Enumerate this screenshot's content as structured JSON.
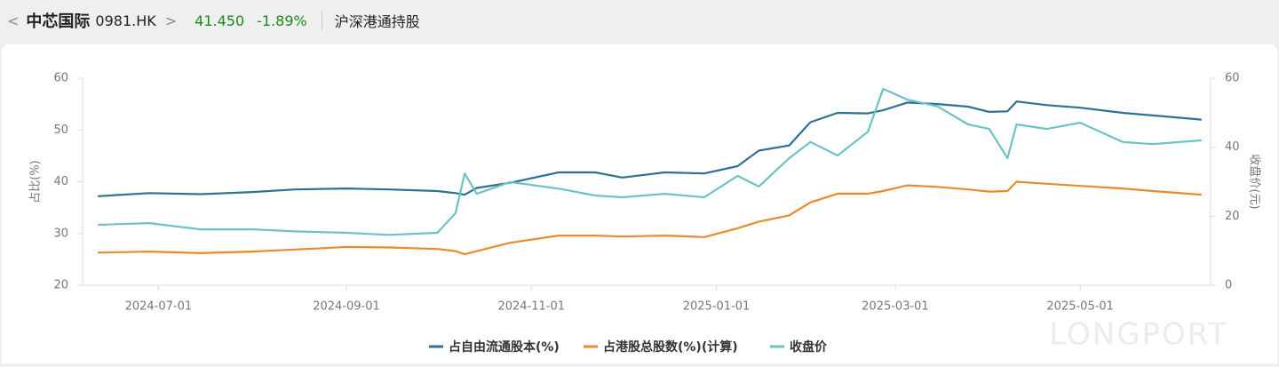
{
  "header": {
    "back": "<",
    "name": "中芯国际",
    "code": "0981.HK",
    "chevron": ">",
    "price": "41.450",
    "change": "-1.89%",
    "title": "沪深港通持股"
  },
  "watermark": "LONGPORT",
  "chart_data": {
    "type": "line",
    "y_label": "占比(%)",
    "y2_label": "收盘价(元)",
    "x": [
      "2024-06-11",
      "2024-06-28",
      "2024-07-15",
      "2024-08-01",
      "2024-08-15",
      "2024-09-01",
      "2024-09-15",
      "2024-10-01",
      "2024-10-07",
      "2024-10-10",
      "2024-10-14",
      "2024-10-25",
      "2024-11-10",
      "2024-11-22",
      "2024-12-01",
      "2024-12-15",
      "2024-12-28",
      "2025-01-08",
      "2025-01-15",
      "2025-01-25",
      "2025-02-01",
      "2025-02-10",
      "2025-02-20",
      "2025-02-25",
      "2025-03-05",
      "2025-03-15",
      "2025-03-25",
      "2025-04-01",
      "2025-04-07",
      "2025-04-10",
      "2025-04-20",
      "2025-05-01",
      "2025-05-15",
      "2025-05-25",
      "2025-06-10"
    ],
    "xlim": [
      "2024-06-06",
      "2025-06-13"
    ],
    "xticks": [
      "2024-07-01",
      "2024-09-01",
      "2024-11-01",
      "2025-01-01",
      "2025-03-01",
      "2025-05-01"
    ],
    "ylim": [
      20,
      60
    ],
    "yticks": [
      20,
      30,
      40,
      50,
      60
    ],
    "y2lim": [
      0,
      60
    ],
    "y2ticks": [
      0,
      20,
      40,
      60
    ],
    "grid": false,
    "legend": "bottom",
    "series": [
      {
        "name": "占自由流通股本(%)",
        "color": "#2f7194",
        "values": [
          37.2,
          37.8,
          37.6,
          38.0,
          38.5,
          38.7,
          38.5,
          38.2,
          37.8,
          37.5,
          38.8,
          39.8,
          41.8,
          41.8,
          40.8,
          41.8,
          41.6,
          43.0,
          46.0,
          47.0,
          51.5,
          53.3,
          53.2,
          53.8,
          55.3,
          55.0,
          54.5,
          53.5,
          53.6,
          55.5,
          54.8,
          54.3,
          53.3,
          52.8,
          52.0
        ]
      },
      {
        "name": "占港股总股数(%)(计算)",
        "color": "#e98b2a",
        "values": [
          26.3,
          26.5,
          26.2,
          26.5,
          26.9,
          27.4,
          27.3,
          27.0,
          26.6,
          26.0,
          26.6,
          28.2,
          29.6,
          29.6,
          29.4,
          29.6,
          29.3,
          31.0,
          32.3,
          33.5,
          36.0,
          37.7,
          37.7,
          38.2,
          39.3,
          39.0,
          38.5,
          38.1,
          38.2,
          40.0,
          39.6,
          39.2,
          38.7,
          38.2,
          37.5
        ]
      },
      {
        "name": "收盘价",
        "color": "#6cc3c4",
        "axis": "y2",
        "values": [
          17.5,
          18,
          16.2,
          16.2,
          15.6,
          15.2,
          14.6,
          15.2,
          20.9,
          32.4,
          26.5,
          29.9,
          28,
          26,
          25.5,
          26.5,
          25.5,
          31.7,
          28.6,
          36.8,
          41.5,
          37.6,
          44.5,
          56.9,
          53.8,
          51.8,
          46.6,
          45.3,
          36.8,
          46.6,
          45.3,
          47.1,
          41.5,
          40.9,
          42
        ]
      }
    ]
  }
}
